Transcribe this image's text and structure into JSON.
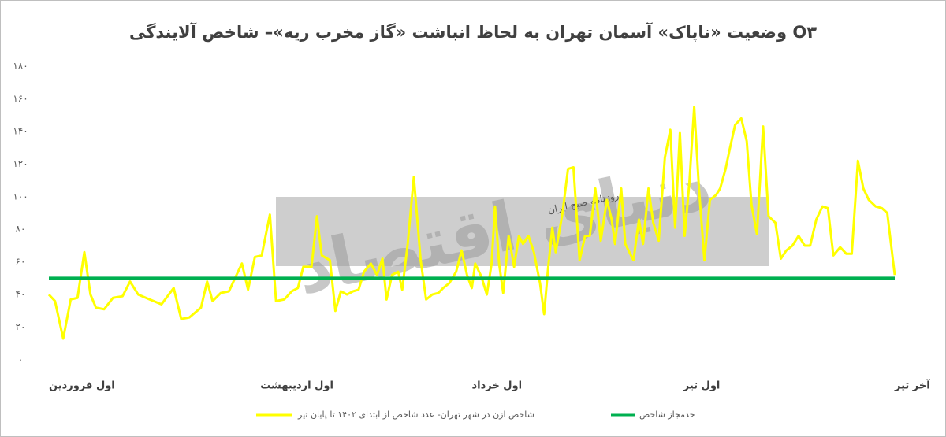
{
  "chart_data": {
    "type": "line",
    "title": "وضعیت «ناپاک» آسمان تهران به لحاظ انباشت «گاز مخرب ریه»– شاخص آلایندگی O۳",
    "watermark": {
      "brand": "دنیای اقتصاد",
      "tagline": "روزنامه صبح ایران"
    },
    "xlim": [
      0,
      124
    ],
    "xticks": [
      {
        "value": 0,
        "label": "اول فروردین"
      },
      {
        "value": 31,
        "label": "اول اردیبهشت"
      },
      {
        "value": 62,
        "label": "اول خرداد"
      },
      {
        "value": 93,
        "label": "اول تیر"
      },
      {
        "value": 124,
        "label": "آخر تیر"
      }
    ],
    "ylim": [
      0,
      180
    ],
    "yticks": [
      {
        "value": 0,
        "label": "۰"
      },
      {
        "value": 20,
        "label": "۲۰"
      },
      {
        "value": 40,
        "label": "۴۰"
      },
      {
        "value": 60,
        "label": "۶۰"
      },
      {
        "value": 80,
        "label": "۸۰"
      },
      {
        "value": 100,
        "label": "۱۰۰"
      },
      {
        "value": 120,
        "label": "۱۲۰"
      },
      {
        "value": 140,
        "label": "۱۴۰"
      },
      {
        "value": 160,
        "label": "۱۶۰"
      },
      {
        "value": 180,
        "label": "۱۸۰"
      }
    ],
    "series": [
      {
        "name": "شاخص ازن در شهر تهران- عدد شاخص از ابتدای ۱۴۰۲ تا پایان تیر",
        "color": "#ffff00",
        "x": [
          0,
          0.9,
          2.1,
          3.2,
          4.2,
          5.2,
          6.1,
          6.9,
          8.1,
          9.4,
          10.8,
          11.9,
          13.1,
          14.8,
          16.5,
          18.3,
          19.4,
          20.6,
          22.3,
          23.2,
          24.0,
          25.2,
          26.4,
          27.5,
          28.3,
          29.2,
          30.2,
          31.2,
          32.4,
          33.3,
          34.5,
          35.6,
          36.5,
          37.3,
          38.5,
          39.3,
          40.0,
          41.2,
          42.0,
          42.8,
          43.7,
          44.6,
          45.4,
          46.2,
          47.2,
          48.1,
          48.9,
          49.5,
          50.3,
          51.2,
          51.8,
          52.6,
          53.5,
          54.5,
          55.3,
          56.2,
          57.1,
          57.8,
          58.7,
          59.7,
          60.5,
          61.3,
          62.0,
          62.5,
          63.4,
          64.2,
          64.9,
          65.4,
          66.0,
          66.6,
          67.4,
          68.2,
          68.9,
          69.5,
          70.3,
          71.1,
          72.0,
          72.6,
          73.2,
          73.8,
          74.3,
          75.3,
          76.1,
          76.9,
          77.8,
          78.6,
          79.3,
          80.1,
          80.9,
          81.8,
          82.5,
          83.0,
          83.9,
          84.5,
          85.1,
          85.7,
          86.5,
          87.1,
          87.9,
          88.6,
          89.4,
          90.3,
          91.1,
          91.8,
          92.5,
          93.2,
          93.9,
          94.6,
          95.3,
          96.1,
          96.9,
          97.8,
          98.4,
          99.2,
          99.8,
          100.6,
          101.5,
          102.3,
          103.0,
          103.8,
          104.7,
          105.5,
          106.5,
          107.3,
          108.1,
          109.0,
          109.9,
          110.8,
          111.6,
          112.5,
          113.4,
          114.2,
          115.0,
          116.0,
          116.9,
          117.7,
          118.6,
          119.4,
          120.2,
          121.2,
          122.1,
          122.9,
          124.0
        ],
        "values": [
          40,
          36,
          13,
          37,
          38,
          66,
          40,
          32,
          31,
          38,
          39,
          48,
          40,
          37,
          34,
          44,
          25,
          26,
          32,
          48,
          36,
          41,
          42,
          52,
          59,
          43,
          63,
          64,
          89,
          36,
          37,
          42,
          44,
          57,
          57,
          88,
          64,
          61,
          30,
          42,
          40,
          42,
          43,
          54,
          59,
          52,
          62,
          37,
          52,
          54,
          43,
          71,
          112,
          61,
          37,
          40,
          41,
          44,
          47,
          54,
          67,
          52,
          44,
          59,
          51,
          40,
          59,
          94,
          59,
          41,
          76,
          57,
          76,
          71,
          76,
          66,
          47,
          28,
          57,
          81,
          66,
          90,
          117,
          118,
          61,
          76,
          76,
          105,
          73,
          98,
          86,
          71,
          105,
          71,
          66,
          61,
          86,
          71,
          105,
          84,
          73,
          124,
          141,
          81,
          139,
          76,
          109,
          155,
          105,
          61,
          98,
          101,
          105,
          117,
          129,
          144,
          148,
          134,
          95,
          77,
          143,
          88,
          84,
          62,
          67,
          70,
          76,
          70,
          70,
          86,
          94,
          93,
          64,
          69,
          65,
          65,
          122,
          105,
          98,
          94,
          93,
          90,
          52
        ]
      },
      {
        "name": "حدمجاز شاخص",
        "color": "#00b050",
        "x": [
          0,
          124
        ],
        "values": [
          50,
          50
        ]
      }
    ]
  }
}
